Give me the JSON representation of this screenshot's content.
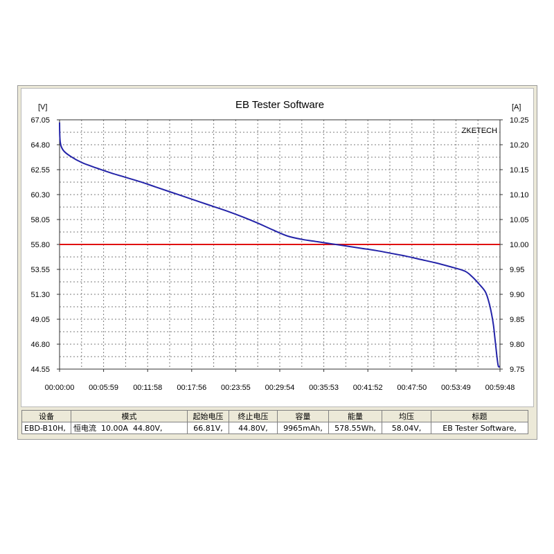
{
  "chart": {
    "title": "EB Tester Software",
    "left_unit": "[V]",
    "right_unit": "[A]",
    "watermark": "ZKETECH",
    "colors": {
      "voltage": "#2323a8",
      "current": "#e01010",
      "grid": "#7a7a7a"
    }
  },
  "chart_data": {
    "type": "line",
    "title": "EB Tester Software",
    "xlabel": "",
    "ylabel": "[V]",
    "y2label": "[A]",
    "grid": true,
    "xlim_seconds": [
      0,
      3588
    ],
    "ylim": [
      44.55,
      67.05
    ],
    "y2lim": [
      9.75,
      10.25
    ],
    "x_tick_labels": [
      "00:00:00",
      "00:05:59",
      "00:11:58",
      "00:17:56",
      "00:23:55",
      "00:29:54",
      "00:35:53",
      "00:41:52",
      "00:47:50",
      "00:53:49",
      "00:59:48"
    ],
    "y_tick_labels": [
      "67.05",
      "64.80",
      "62.55",
      "60.30",
      "58.05",
      "55.80",
      "53.55",
      "51.30",
      "49.05",
      "46.80",
      "44.55"
    ],
    "y2_tick_labels": [
      "10.25",
      "10.20",
      "10.15",
      "10.10",
      "10.05",
      "10.00",
      "9.95",
      "9.90",
      "9.85",
      "9.80",
      "9.75"
    ],
    "series": [
      {
        "axis": "left",
        "x_time": [
          "00:00:00",
          "00:00:05",
          "00:00:30",
          "00:01:30",
          "00:03:00",
          "00:05:00",
          "00:07:00",
          "00:09:00",
          "00:11:00",
          "00:13:00",
          "00:15:00",
          "00:17:00",
          "00:19:00",
          "00:21:00",
          "00:23:00",
          "00:25:00",
          "00:27:00",
          "00:29:00",
          "00:31:00",
          "00:33:00",
          "00:35:00",
          "00:37:00",
          "00:39:00",
          "00:41:00",
          "00:43:00",
          "00:45:00",
          "00:47:00",
          "00:49:00",
          "00:51:00",
          "00:53:00",
          "00:55:00",
          "00:56:00",
          "00:57:00",
          "00:57:50",
          "00:58:20",
          "00:58:40",
          "00:58:55",
          "00:59:05",
          "00:59:15",
          "00:59:25",
          "00:59:35",
          "00:59:48"
        ],
        "values": [
          66.81,
          65.1,
          64.3,
          63.75,
          63.2,
          62.7,
          62.25,
          61.85,
          61.45,
          61.0,
          60.55,
          60.1,
          59.65,
          59.2,
          58.75,
          58.25,
          57.7,
          57.1,
          56.55,
          56.25,
          56.05,
          55.85,
          55.65,
          55.45,
          55.25,
          55.0,
          54.75,
          54.45,
          54.15,
          53.8,
          53.4,
          52.9,
          52.2,
          51.5,
          50.5,
          49.5,
          48.5,
          47.5,
          46.5,
          45.5,
          44.8,
          44.8
        ]
      },
      {
        "axis": "right",
        "x_time": [
          "00:00:00",
          "00:59:48"
        ],
        "values": [
          10.0,
          10.0
        ]
      }
    ]
  },
  "table": {
    "headers": [
      "设备",
      "模式",
      "起始电压",
      "终止电压",
      "容量",
      "能量",
      "均压",
      "标题"
    ],
    "row": [
      "EBD-B10H,",
      "恒电流  10.00A  44.80V,",
      "66.81V,",
      "44.80V,",
      "9965mAh,",
      "578.55Wh,",
      "58.04V,",
      "EB Tester Software,"
    ]
  }
}
